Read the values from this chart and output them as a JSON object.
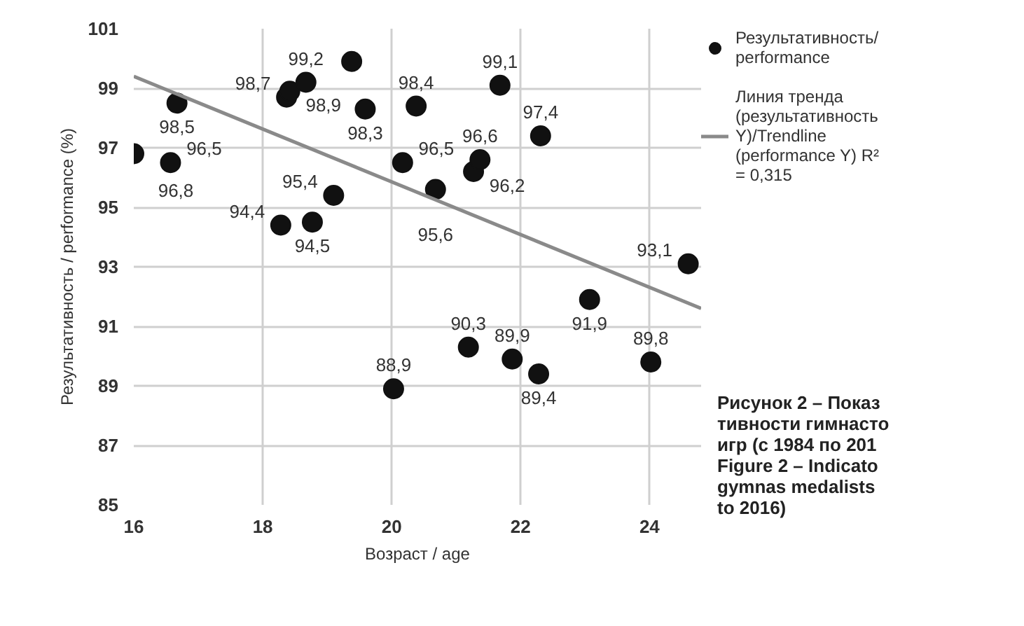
{
  "chart_data": {
    "type": "scatter",
    "ylabel": "Результативность / performance (%)",
    "xlabel": "Возраст / age",
    "xlim": [
      16,
      24.8
    ],
    "ylim": [
      85,
      101
    ],
    "xticks": [
      16,
      18,
      20,
      22,
      24
    ],
    "yticks": [
      85,
      87,
      89,
      91,
      93,
      95,
      97,
      99,
      101
    ],
    "grid": true,
    "legend": "right",
    "series": [
      {
        "name": "Результативность/ performance",
        "color": "#111111",
        "marker": "circle",
        "x": [
          16.0,
          16.57,
          16.67,
          18.37,
          18.42,
          18.67,
          19.38,
          19.59,
          20.38,
          20.17,
          20.68,
          21.27,
          21.37,
          21.68,
          22.31,
          24.6,
          23.07,
          24.02,
          21.19,
          21.87,
          22.28,
          20.03,
          18.28,
          18.77,
          19.1
        ],
        "values": [
          96.8,
          96.5,
          98.5,
          98.7,
          98.9,
          99.2,
          99.9,
          98.3,
          98.4,
          96.5,
          95.6,
          96.2,
          96.6,
          99.1,
          97.4,
          93.1,
          91.9,
          89.8,
          90.3,
          89.9,
          89.4,
          88.9,
          94.4,
          94.5,
          95.4
        ],
        "value_labels": [
          "96,8",
          "96,5",
          "98,5",
          "98,7",
          "98,9",
          "99,2",
          null,
          "98,3",
          "98,4",
          "96,5",
          "95,6",
          "96,2",
          "96,6",
          "99,1",
          "97,4",
          "93,1",
          "91,9",
          "89,8",
          "90,3",
          "89,9",
          "89,4",
          "88,9",
          "94,4",
          "94,5",
          "95,4"
        ]
      },
      {
        "name": "Линия тренда (результативность Y)/Trendline (performance Y) R² = 0,315",
        "color": "#8a8a8a",
        "type": "line",
        "marker": "none",
        "x": [
          16,
          24.8
        ],
        "values": [
          99.4,
          91.6
        ]
      }
    ],
    "annotations": [
      "Рисунок 2 – Показ\nтивности гимнасто\nигр (с 1984 по 201\nFigure 2 – Indicato\ngymnas medalists\nto 2016)"
    ]
  }
}
